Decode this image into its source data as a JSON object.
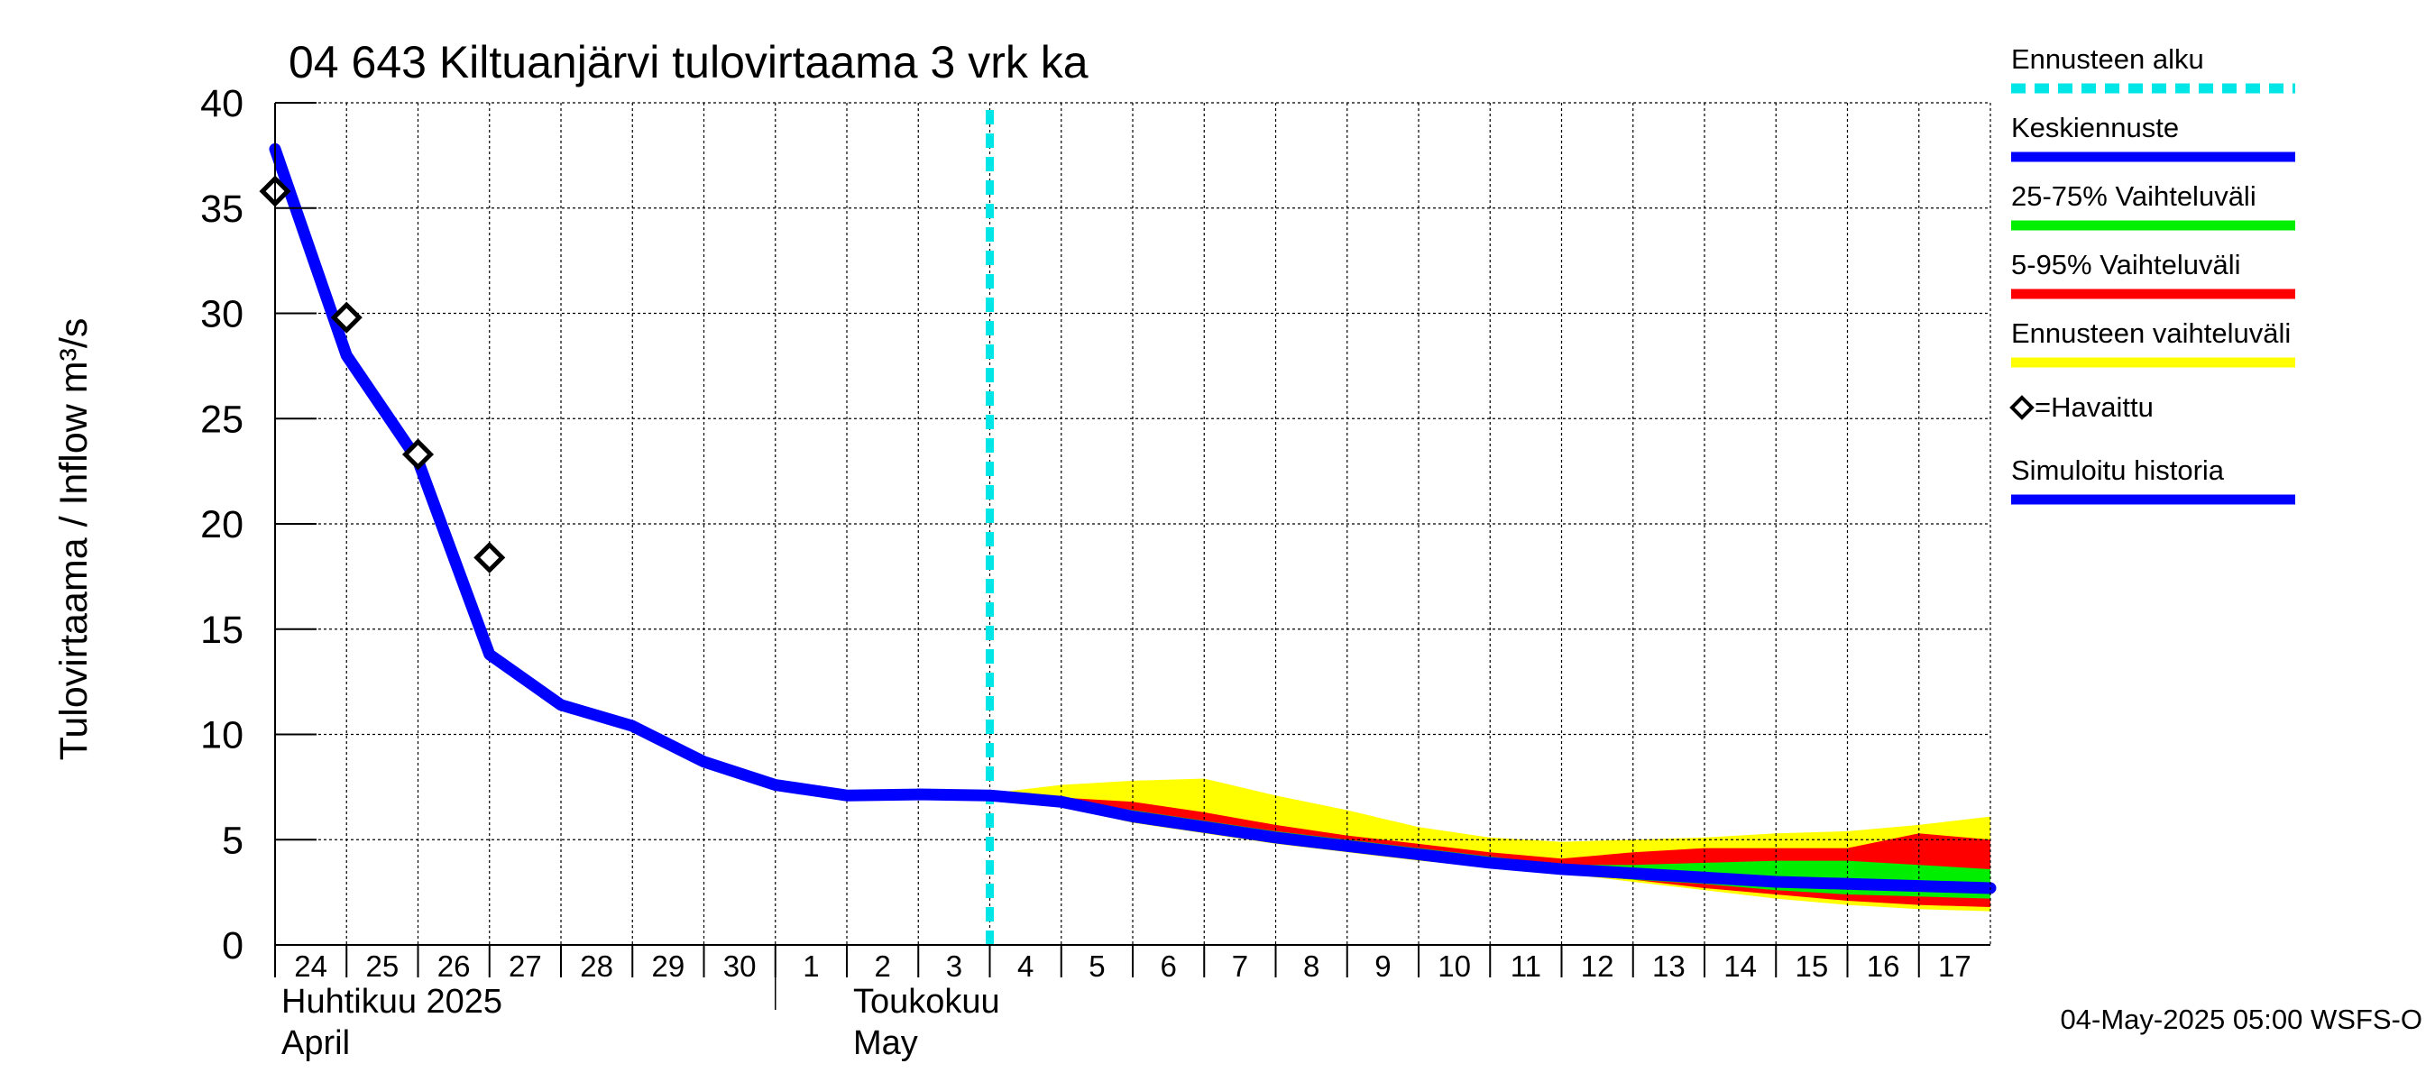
{
  "chart_data": {
    "type": "line",
    "title": "04 643 Kiltuanjärvi tulovirtaama 3 vrk ka",
    "ylabel": "Tulovirtaama / Inflow    m³/s",
    "ylim": [
      0,
      40
    ],
    "yticks": [
      "0",
      "5",
      "10",
      "15",
      "20",
      "25",
      "30",
      "35",
      "40"
    ],
    "x_range": [
      0,
      24
    ],
    "x_tick_labels": [
      "24",
      "25",
      "26",
      "27",
      "28",
      "29",
      "30",
      "1",
      "2",
      "3",
      "4",
      "5",
      "6",
      "7",
      "8",
      "9",
      "10",
      "11",
      "12",
      "13",
      "14",
      "15",
      "16",
      "17"
    ],
    "month_labels": [
      {
        "line1": "Huhtikuu  2025",
        "line2": "April",
        "day_index": 0
      },
      {
        "line1": "Toukokuu",
        "line2": "May",
        "day_index": 8
      }
    ],
    "forecast_start_day": 10,
    "grid": true,
    "series": [
      {
        "name": "Simuloitu historia",
        "color": "#0000ff",
        "x": [
          0,
          1,
          2,
          3,
          4,
          5,
          6,
          7,
          8,
          9,
          10
        ],
        "values": [
          37.8,
          28.0,
          23.0,
          13.8,
          11.4,
          10.4,
          8.7,
          7.6,
          7.1,
          7.15,
          7.1
        ]
      },
      {
        "name": "Keskiennuste",
        "color": "#0000ff",
        "x": [
          10,
          11,
          12,
          13,
          14,
          15,
          16,
          17,
          18,
          19,
          20,
          21,
          22,
          23,
          24
        ],
        "values": [
          7.1,
          6.8,
          6.1,
          5.6,
          5.1,
          4.7,
          4.3,
          3.9,
          3.6,
          3.4,
          3.2,
          3.0,
          2.9,
          2.8,
          2.7
        ]
      }
    ],
    "observed": {
      "name": "=Havaittu",
      "x": [
        0,
        1,
        2,
        3
      ],
      "values": [
        35.8,
        29.8,
        23.3,
        18.4
      ]
    },
    "bands": [
      {
        "name": "Ennusteen vaihteluväli",
        "color": "#ffff00",
        "x": [
          10,
          11,
          12,
          13,
          14,
          15,
          16,
          17,
          18,
          19,
          20,
          21,
          22,
          23,
          24
        ],
        "upper": [
          7.2,
          7.6,
          7.8,
          7.9,
          7.1,
          6.4,
          5.6,
          5.1,
          4.9,
          5.0,
          5.1,
          5.3,
          5.4,
          5.7,
          6.1
        ],
        "lower": [
          7.0,
          6.6,
          5.8,
          5.3,
          4.8,
          4.4,
          4.0,
          3.7,
          3.4,
          3.0,
          2.6,
          2.2,
          1.9,
          1.7,
          1.6
        ]
      },
      {
        "name": "5-95% Vaihteluväli",
        "color": "#ff0000",
        "x": [
          10,
          11,
          12,
          13,
          14,
          15,
          16,
          17,
          18,
          19,
          20,
          21,
          22,
          23,
          24
        ],
        "upper": [
          7.1,
          7.0,
          6.8,
          6.3,
          5.7,
          5.2,
          4.8,
          4.4,
          4.1,
          4.4,
          4.6,
          4.6,
          4.6,
          5.3,
          5.0
        ],
        "lower": [
          7.0,
          6.8,
          6.0,
          5.4,
          5.0,
          4.5,
          4.1,
          3.8,
          3.4,
          3.1,
          2.7,
          2.4,
          2.1,
          1.9,
          1.8
        ]
      },
      {
        "name": "25-75% Vaihteluväli",
        "color": "#00ee00",
        "x": [
          10,
          11,
          12,
          13,
          14,
          15,
          16,
          17,
          18,
          19,
          20,
          21,
          22,
          23,
          24
        ],
        "upper": [
          7.1,
          6.9,
          6.4,
          5.9,
          5.4,
          5.0,
          4.6,
          4.2,
          3.8,
          3.8,
          3.9,
          4.0,
          4.0,
          3.8,
          3.6
        ],
        "lower": [
          7.0,
          6.7,
          5.9,
          5.4,
          4.9,
          4.5,
          4.1,
          3.7,
          3.4,
          3.1,
          2.9,
          2.6,
          2.4,
          2.3,
          2.2
        ]
      }
    ],
    "legend": [
      {
        "label": "Ennusteen alku",
        "color": "#00e5e5",
        "style": "dashed"
      },
      {
        "label": "Keskiennuste",
        "color": "#0000ff",
        "style": "solid"
      },
      {
        "label": "25-75% Vaihteluväli",
        "color": "#00ee00",
        "style": "solid"
      },
      {
        "label": "5-95% Vaihteluväli",
        "color": "#ff0000",
        "style": "solid"
      },
      {
        "label": "Ennusteen vaihteluväli",
        "color": "#ffff00",
        "style": "solid"
      },
      {
        "label": "=Havaittu",
        "color": "#000000",
        "style": "marker"
      },
      {
        "label": "Simuloitu historia",
        "color": "#0000ff",
        "style": "solid"
      }
    ],
    "footer": "04-May-2025 05:00 WSFS-O"
  }
}
